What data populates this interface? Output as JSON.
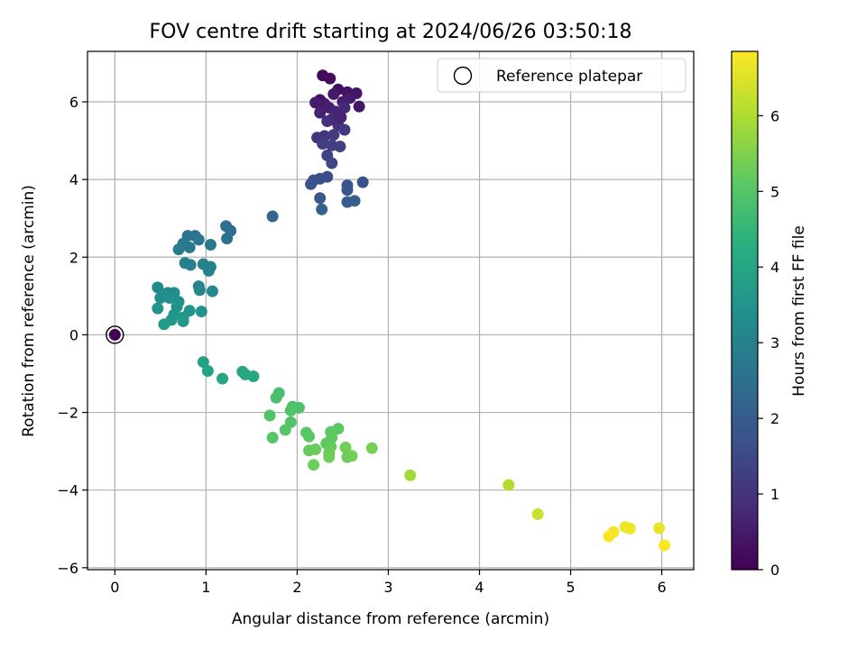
{
  "chart_data": {
    "type": "scatter",
    "title": "FOV centre drift starting at 2024/06/26 03:50:18",
    "xlabel": "Angular distance from reference (arcmin)",
    "ylabel": "Rotation from reference (arcmin)",
    "xlim": [
      -0.3,
      6.35
    ],
    "ylim": [
      -6.05,
      7.3
    ],
    "xticks": [
      0,
      1,
      2,
      3,
      4,
      5,
      6
    ],
    "yticks": [
      -6,
      -4,
      -2,
      0,
      2,
      4,
      6
    ],
    "grid": true,
    "legend": {
      "position": "top-right",
      "entries": [
        "Reference platepar"
      ]
    },
    "colorbar": {
      "label": "Hours from first FF file",
      "colormap": "viridis",
      "range": [
        0,
        6.85
      ],
      "ticks": [
        0,
        1,
        2,
        3,
        4,
        5,
        6
      ]
    },
    "reference_point": {
      "x": 0,
      "y": 0
    },
    "points": [
      {
        "x": 2.28,
        "y": 6.68,
        "t": 0.15
      },
      {
        "x": 2.36,
        "y": 6.6,
        "t": 0.2
      },
      {
        "x": 2.25,
        "y": 6.05,
        "t": 0.25
      },
      {
        "x": 2.45,
        "y": 6.32,
        "t": 0.3
      },
      {
        "x": 2.55,
        "y": 6.25,
        "t": 0.35
      },
      {
        "x": 2.65,
        "y": 6.22,
        "t": 0.4
      },
      {
        "x": 2.4,
        "y": 6.2,
        "t": 0.45
      },
      {
        "x": 2.3,
        "y": 5.95,
        "t": 0.5
      },
      {
        "x": 2.5,
        "y": 6.0,
        "t": 0.55
      },
      {
        "x": 2.35,
        "y": 5.85,
        "t": 0.6
      },
      {
        "x": 2.68,
        "y": 5.88,
        "t": 0.4
      },
      {
        "x": 2.2,
        "y": 5.98,
        "t": 0.55
      },
      {
        "x": 2.25,
        "y": 5.72,
        "t": 0.65
      },
      {
        "x": 2.42,
        "y": 5.75,
        "t": 0.7
      },
      {
        "x": 2.52,
        "y": 5.85,
        "t": 0.75
      },
      {
        "x": 2.38,
        "y": 5.55,
        "t": 0.8
      },
      {
        "x": 2.45,
        "y": 5.4,
        "t": 0.85
      },
      {
        "x": 2.33,
        "y": 5.5,
        "t": 0.9
      },
      {
        "x": 2.48,
        "y": 5.6,
        "t": 0.7
      },
      {
        "x": 2.58,
        "y": 6.1,
        "t": 0.5
      },
      {
        "x": 2.22,
        "y": 5.08,
        "t": 1.0
      },
      {
        "x": 2.3,
        "y": 5.12,
        "t": 1.05
      },
      {
        "x": 2.52,
        "y": 5.28,
        "t": 1.1
      },
      {
        "x": 2.4,
        "y": 5.15,
        "t": 1.15
      },
      {
        "x": 2.28,
        "y": 4.92,
        "t": 1.2
      },
      {
        "x": 2.38,
        "y": 4.88,
        "t": 1.25
      },
      {
        "x": 2.47,
        "y": 4.85,
        "t": 1.3
      },
      {
        "x": 2.33,
        "y": 4.62,
        "t": 1.35
      },
      {
        "x": 2.38,
        "y": 4.42,
        "t": 1.45
      },
      {
        "x": 2.33,
        "y": 4.07,
        "t": 1.6
      },
      {
        "x": 2.25,
        "y": 4.02,
        "t": 1.65
      },
      {
        "x": 2.18,
        "y": 3.98,
        "t": 1.7
      },
      {
        "x": 2.15,
        "y": 3.88,
        "t": 1.75
      },
      {
        "x": 2.72,
        "y": 3.93,
        "t": 1.75
      },
      {
        "x": 2.55,
        "y": 3.85,
        "t": 1.8
      },
      {
        "x": 2.55,
        "y": 3.73,
        "t": 1.85
      },
      {
        "x": 2.25,
        "y": 3.52,
        "t": 1.9
      },
      {
        "x": 2.55,
        "y": 3.42,
        "t": 1.95
      },
      {
        "x": 2.63,
        "y": 3.45,
        "t": 2.0
      },
      {
        "x": 2.27,
        "y": 3.23,
        "t": 2.05
      },
      {
        "x": 1.73,
        "y": 3.05,
        "t": 2.2
      },
      {
        "x": 1.22,
        "y": 2.8,
        "t": 2.45
      },
      {
        "x": 1.27,
        "y": 2.68,
        "t": 2.5
      },
      {
        "x": 1.23,
        "y": 2.48,
        "t": 2.55
      },
      {
        "x": 0.8,
        "y": 2.55,
        "t": 2.6
      },
      {
        "x": 0.88,
        "y": 2.55,
        "t": 2.65
      },
      {
        "x": 0.92,
        "y": 2.45,
        "t": 2.7
      },
      {
        "x": 0.75,
        "y": 2.35,
        "t": 2.75
      },
      {
        "x": 1.05,
        "y": 2.32,
        "t": 2.75
      },
      {
        "x": 0.82,
        "y": 2.25,
        "t": 2.8
      },
      {
        "x": 0.7,
        "y": 2.2,
        "t": 2.85
      },
      {
        "x": 0.77,
        "y": 1.85,
        "t": 2.9
      },
      {
        "x": 0.83,
        "y": 1.8,
        "t": 2.95
      },
      {
        "x": 0.97,
        "y": 1.82,
        "t": 3.0
      },
      {
        "x": 1.05,
        "y": 1.75,
        "t": 2.95
      },
      {
        "x": 1.03,
        "y": 1.65,
        "t": 3.0
      },
      {
        "x": 0.92,
        "y": 1.25,
        "t": 3.1
      },
      {
        "x": 0.93,
        "y": 1.15,
        "t": 3.15
      },
      {
        "x": 1.07,
        "y": 1.12,
        "t": 3.15
      },
      {
        "x": 0.47,
        "y": 1.22,
        "t": 3.25
      },
      {
        "x": 0.58,
        "y": 1.08,
        "t": 3.3
      },
      {
        "x": 0.65,
        "y": 1.08,
        "t": 3.35
      },
      {
        "x": 0.5,
        "y": 0.95,
        "t": 3.35
      },
      {
        "x": 0.6,
        "y": 0.95,
        "t": 3.4
      },
      {
        "x": 0.7,
        "y": 0.85,
        "t": 3.4
      },
      {
        "x": 0.68,
        "y": 0.72,
        "t": 3.45
      },
      {
        "x": 0.47,
        "y": 0.68,
        "t": 3.5
      },
      {
        "x": 0.82,
        "y": 0.62,
        "t": 3.5
      },
      {
        "x": 0.95,
        "y": 0.6,
        "t": 3.55
      },
      {
        "x": 0.65,
        "y": 0.52,
        "t": 3.55
      },
      {
        "x": 0.75,
        "y": 0.45,
        "t": 3.6
      },
      {
        "x": 0.62,
        "y": 0.38,
        "t": 3.6
      },
      {
        "x": 0.75,
        "y": 0.35,
        "t": 3.65
      },
      {
        "x": 0.54,
        "y": 0.27,
        "t": 3.7
      },
      {
        "x": 0.97,
        "y": -0.7,
        "t": 3.9
      },
      {
        "x": 1.02,
        "y": -0.93,
        "t": 3.95
      },
      {
        "x": 1.18,
        "y": -1.13,
        "t": 4.0
      },
      {
        "x": 1.4,
        "y": -0.95,
        "t": 4.05
      },
      {
        "x": 1.43,
        "y": -1.02,
        "t": 4.05
      },
      {
        "x": 1.52,
        "y": -1.07,
        "t": 4.1
      },
      {
        "x": 1.8,
        "y": -1.5,
        "t": 4.8
      },
      {
        "x": 1.77,
        "y": -1.62,
        "t": 4.82
      },
      {
        "x": 1.95,
        "y": -1.85,
        "t": 4.85
      },
      {
        "x": 2.02,
        "y": -1.88,
        "t": 4.88
      },
      {
        "x": 1.93,
        "y": -1.95,
        "t": 4.9
      },
      {
        "x": 1.7,
        "y": -2.08,
        "t": 4.9
      },
      {
        "x": 1.93,
        "y": -2.25,
        "t": 4.95
      },
      {
        "x": 1.87,
        "y": -2.45,
        "t": 5.0
      },
      {
        "x": 1.73,
        "y": -2.65,
        "t": 5.0
      },
      {
        "x": 2.1,
        "y": -2.52,
        "t": 5.05
      },
      {
        "x": 2.13,
        "y": -2.62,
        "t": 5.05
      },
      {
        "x": 2.37,
        "y": -2.5,
        "t": 5.1
      },
      {
        "x": 2.45,
        "y": -2.42,
        "t": 5.1
      },
      {
        "x": 2.38,
        "y": -2.65,
        "t": 5.15
      },
      {
        "x": 2.32,
        "y": -2.8,
        "t": 5.15
      },
      {
        "x": 2.37,
        "y": -2.88,
        "t": 5.2
      },
      {
        "x": 2.13,
        "y": -2.98,
        "t": 5.2
      },
      {
        "x": 2.2,
        "y": -2.95,
        "t": 5.25
      },
      {
        "x": 2.35,
        "y": -3.05,
        "t": 5.25
      },
      {
        "x": 2.35,
        "y": -3.15,
        "t": 5.3
      },
      {
        "x": 2.53,
        "y": -2.9,
        "t": 5.35
      },
      {
        "x": 2.55,
        "y": -3.15,
        "t": 5.3
      },
      {
        "x": 2.6,
        "y": -3.12,
        "t": 5.35
      },
      {
        "x": 2.82,
        "y": -2.92,
        "t": 5.4
      },
      {
        "x": 2.18,
        "y": -3.35,
        "t": 5.3
      },
      {
        "x": 3.24,
        "y": -3.62,
        "t": 5.85
      },
      {
        "x": 4.32,
        "y": -3.87,
        "t": 6.05
      },
      {
        "x": 4.64,
        "y": -4.62,
        "t": 6.3
      },
      {
        "x": 5.97,
        "y": -4.98,
        "t": 6.65
      },
      {
        "x": 5.6,
        "y": -4.95,
        "t": 6.7
      },
      {
        "x": 5.65,
        "y": -4.99,
        "t": 6.72
      },
      {
        "x": 5.47,
        "y": -5.08,
        "t": 6.75
      },
      {
        "x": 5.42,
        "y": -5.19,
        "t": 6.78
      },
      {
        "x": 6.03,
        "y": -5.42,
        "t": 6.85
      }
    ]
  }
}
